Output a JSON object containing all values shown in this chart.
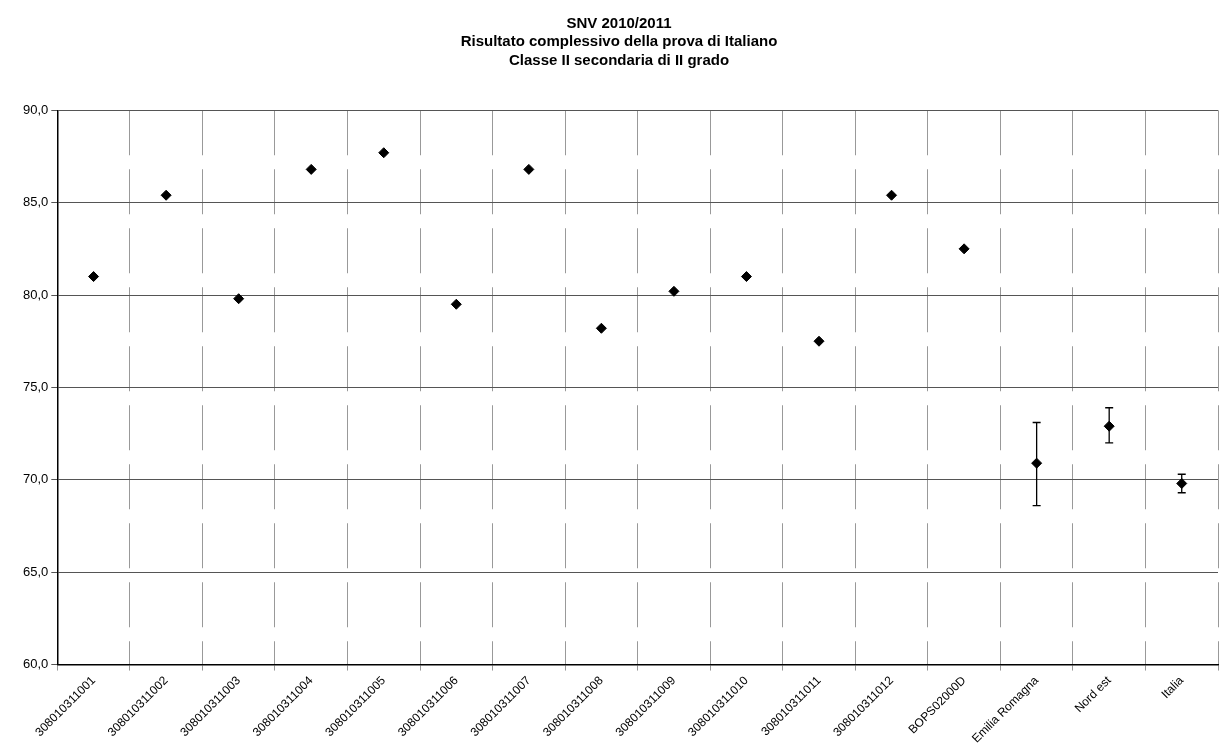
{
  "chart_data": {
    "type": "scatter",
    "title": "SNV 2010/2011\nRisultato complessivo della prova di Italiano\nClasse II secondaria di II grado",
    "categories": [
      "308010311001",
      "308010311002",
      "308010311003",
      "308010311004",
      "308010311005",
      "308010311006",
      "308010311007",
      "308010311008",
      "308010311009",
      "308010311010",
      "308010311011",
      "308010311012",
      "BOPS02000D",
      "Emilia Romagna",
      "Nord est",
      "Italia"
    ],
    "values": [
      81.0,
      85.4,
      79.8,
      86.8,
      87.7,
      79.5,
      86.8,
      78.2,
      80.2,
      81.0,
      77.5,
      85.4,
      82.5,
      70.9,
      72.9,
      69.8
    ],
    "errors": [
      null,
      null,
      null,
      null,
      null,
      null,
      null,
      null,
      null,
      null,
      null,
      null,
      null,
      [
        68.6,
        73.1
      ],
      [
        72.0,
        73.9
      ],
      [
        69.3,
        70.3
      ]
    ],
    "color": "#000000",
    "marker": "diamond",
    "grid": true,
    "legend": false,
    "ylim": [
      60,
      90
    ],
    "yticks": [
      {
        "value": 60,
        "label": "60,0"
      },
      {
        "value": 65,
        "label": "65,0"
      },
      {
        "value": 70,
        "label": "70,0"
      },
      {
        "value": 75,
        "label": "75,0"
      },
      {
        "value": 80,
        "label": "80,0"
      },
      {
        "value": 85,
        "label": "85,0"
      },
      {
        "value": 90,
        "label": "90,0"
      }
    ]
  }
}
